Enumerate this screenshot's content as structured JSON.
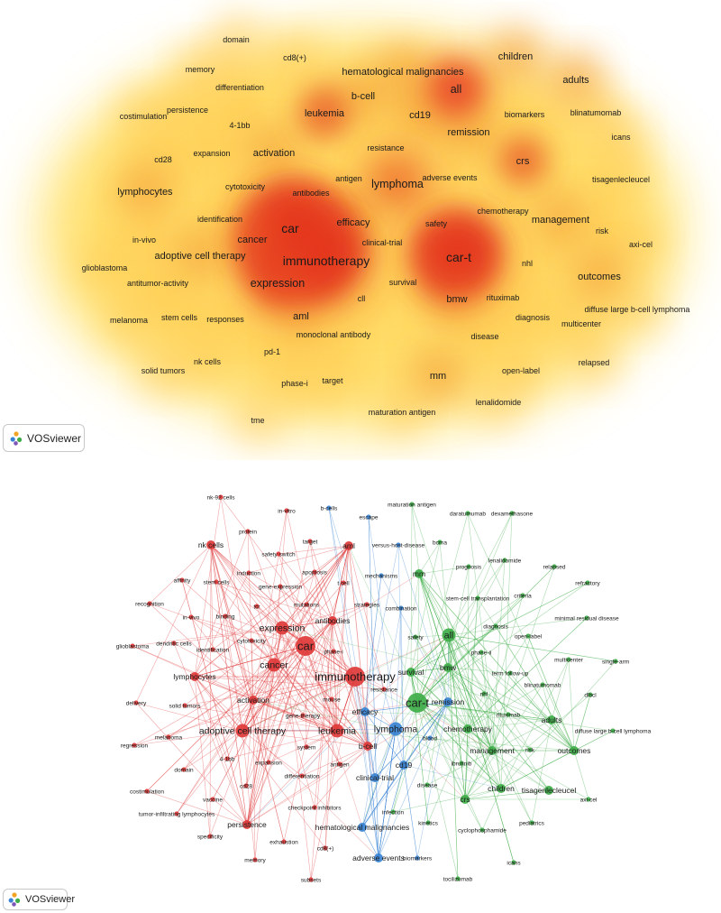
{
  "panel_a": {
    "letter": "a",
    "app_badge": "VOSviewer",
    "terms": [
      {
        "label": "domain",
        "w": 1
      },
      {
        "label": "cd8(+)",
        "w": 1
      },
      {
        "label": "memory",
        "w": 1
      },
      {
        "label": "hematological malignancies",
        "w": 2
      },
      {
        "label": "children",
        "w": 2
      },
      {
        "label": "adults",
        "w": 2
      },
      {
        "label": "differentiation",
        "w": 1
      },
      {
        "label": "all",
        "w": 3
      },
      {
        "label": "b-cell",
        "w": 2
      },
      {
        "label": "persistence",
        "w": 1
      },
      {
        "label": "costimulation",
        "w": 1
      },
      {
        "label": "4-1bb",
        "w": 1
      },
      {
        "label": "leukemia",
        "w": 2
      },
      {
        "label": "cd19",
        "w": 2
      },
      {
        "label": "biomarkers",
        "w": 1
      },
      {
        "label": "blinatumomab",
        "w": 1
      },
      {
        "label": "remission",
        "w": 2
      },
      {
        "label": "icans",
        "w": 1
      },
      {
        "label": "resistance",
        "w": 1
      },
      {
        "label": "expansion",
        "w": 1
      },
      {
        "label": "activation",
        "w": 2
      },
      {
        "label": "crs",
        "w": 2
      },
      {
        "label": "cd28",
        "w": 1
      },
      {
        "label": "antigen",
        "w": 1
      },
      {
        "label": "adverse events",
        "w": 1
      },
      {
        "label": "cytotoxicity",
        "w": 1
      },
      {
        "label": "lymphoma",
        "w": 3
      },
      {
        "label": "tisagenlecleucel",
        "w": 1
      },
      {
        "label": "lymphocytes",
        "w": 2
      },
      {
        "label": "antibodies",
        "w": 1
      },
      {
        "label": "chemotherapy",
        "w": 1
      },
      {
        "label": "identification",
        "w": 1
      },
      {
        "label": "efficacy",
        "w": 2
      },
      {
        "label": "management",
        "w": 2
      },
      {
        "label": "car",
        "w": 4
      },
      {
        "label": "safety",
        "w": 1
      },
      {
        "label": "risk",
        "w": 1
      },
      {
        "label": "in-vivo",
        "w": 1
      },
      {
        "label": "cancer",
        "w": 2
      },
      {
        "label": "clinical-trial",
        "w": 1
      },
      {
        "label": "axi-cel",
        "w": 1
      },
      {
        "label": "adoptive cell therapy",
        "w": 2
      },
      {
        "label": "car-t",
        "w": 4
      },
      {
        "label": "immunotherapy",
        "w": 4
      },
      {
        "label": "glioblastoma",
        "w": 1
      },
      {
        "label": "nhl",
        "w": 1
      },
      {
        "label": "antitumor-activity",
        "w": 1
      },
      {
        "label": "expression",
        "w": 3
      },
      {
        "label": "survival",
        "w": 1
      },
      {
        "label": "outcomes",
        "w": 2
      },
      {
        "label": "cll",
        "w": 1
      },
      {
        "label": "bmw",
        "w": 2
      },
      {
        "label": "rituximab",
        "w": 1
      },
      {
        "label": "diffuse large b-cell lymphoma",
        "w": 1
      },
      {
        "label": "aml",
        "w": 2
      },
      {
        "label": "stem cells",
        "w": 1
      },
      {
        "label": "diagnosis",
        "w": 1
      },
      {
        "label": "melanoma",
        "w": 1
      },
      {
        "label": "responses",
        "w": 1
      },
      {
        "label": "multicenter",
        "w": 1
      },
      {
        "label": "monoclonal antibody",
        "w": 1
      },
      {
        "label": "disease",
        "w": 1
      },
      {
        "label": "pd-1",
        "w": 1
      },
      {
        "label": "nk cells",
        "w": 1
      },
      {
        "label": "relapsed",
        "w": 1
      },
      {
        "label": "solid tumors",
        "w": 1
      },
      {
        "label": "mm",
        "w": 2
      },
      {
        "label": "open-label",
        "w": 1
      },
      {
        "label": "target",
        "w": 1
      },
      {
        "label": "phase-i",
        "w": 1
      },
      {
        "label": "lenalidomide",
        "w": 1
      },
      {
        "label": "tme",
        "w": 1
      },
      {
        "label": "maturation antigen",
        "w": 1
      }
    ]
  },
  "panel_b": {
    "letter": "b",
    "app_badge": "VOSviewer",
    "colors": {
      "red": "#e0393a",
      "green": "#3fae49",
      "blue": "#3a83d4"
    },
    "nodes": [
      {
        "label": "nk-92 cells",
        "c": "red",
        "w": 1
      },
      {
        "label": "in-vitro",
        "c": "red",
        "w": 1
      },
      {
        "label": "b-cells",
        "c": "blue",
        "w": 1
      },
      {
        "label": "maturation antigen",
        "c": "green",
        "w": 1
      },
      {
        "label": "daratumumab",
        "c": "green",
        "w": 1
      },
      {
        "label": "dexamethasone",
        "c": "green",
        "w": 1
      },
      {
        "label": "protein",
        "c": "red",
        "w": 1
      },
      {
        "label": "escape",
        "c": "blue",
        "w": 1
      },
      {
        "label": "target",
        "c": "red",
        "w": 1
      },
      {
        "label": "aml",
        "c": "red",
        "w": 2
      },
      {
        "label": "versus-host-disease",
        "c": "blue",
        "w": 1
      },
      {
        "label": "bcma",
        "c": "green",
        "w": 1
      },
      {
        "label": "nk cells",
        "c": "red",
        "w": 2
      },
      {
        "label": "safety switch",
        "c": "red",
        "w": 1
      },
      {
        "label": "lenalidomide",
        "c": "green",
        "w": 1
      },
      {
        "label": "relapsed",
        "c": "green",
        "w": 1
      },
      {
        "label": "apoptosis",
        "c": "red",
        "w": 1
      },
      {
        "label": "mechanisms",
        "c": "blue",
        "w": 1
      },
      {
        "label": "mm",
        "c": "green",
        "w": 2
      },
      {
        "label": "prognosis",
        "c": "green",
        "w": 1
      },
      {
        "label": "affinity",
        "c": "red",
        "w": 1
      },
      {
        "label": "induction",
        "c": "red",
        "w": 1
      },
      {
        "label": "refractory",
        "c": "green",
        "w": 1
      },
      {
        "label": "stem cells",
        "c": "red",
        "w": 1
      },
      {
        "label": "t cell",
        "c": "red",
        "w": 1
      },
      {
        "label": "criteria",
        "c": "green",
        "w": 1
      },
      {
        "label": "gene-expression",
        "c": "red",
        "w": 1
      },
      {
        "label": "stem-cell transplantation",
        "c": "green",
        "w": 1
      },
      {
        "label": "recognition",
        "c": "red",
        "w": 1
      },
      {
        "label": "tcr",
        "c": "red",
        "w": 1
      },
      {
        "label": "mutations",
        "c": "red",
        "w": 1
      },
      {
        "label": "strategies",
        "c": "red",
        "w": 1
      },
      {
        "label": "combination",
        "c": "blue",
        "w": 1
      },
      {
        "label": "diagnosis",
        "c": "green",
        "w": 1
      },
      {
        "label": "minimal residual disease",
        "c": "green",
        "w": 1
      },
      {
        "label": "in-vivo",
        "c": "red",
        "w": 1
      },
      {
        "label": "binding",
        "c": "red",
        "w": 1
      },
      {
        "label": "expression",
        "c": "red",
        "w": 3
      },
      {
        "label": "antibodies",
        "c": "red",
        "w": 2
      },
      {
        "label": "all",
        "c": "green",
        "w": 3
      },
      {
        "label": "open-label",
        "c": "green",
        "w": 1
      },
      {
        "label": "safety",
        "c": "green",
        "w": 1
      },
      {
        "label": "glioblastoma",
        "c": "red",
        "w": 1
      },
      {
        "label": "dendritic cells",
        "c": "red",
        "w": 1
      },
      {
        "label": "cytotoxicity",
        "c": "red",
        "w": 1
      },
      {
        "label": "identification",
        "c": "red",
        "w": 1
      },
      {
        "label": "car",
        "c": "red",
        "w": 4
      },
      {
        "label": "phase-i",
        "c": "red",
        "w": 1
      },
      {
        "label": "phase-ii",
        "c": "green",
        "w": 1
      },
      {
        "label": "multicenter",
        "c": "green",
        "w": 1
      },
      {
        "label": "single-arm",
        "c": "green",
        "w": 1
      },
      {
        "label": "cancer",
        "c": "red",
        "w": 3
      },
      {
        "label": "immunotherapy",
        "c": "red",
        "w": 4
      },
      {
        "label": "term follow-up",
        "c": "green",
        "w": 1
      },
      {
        "label": "lymphocytes",
        "c": "red",
        "w": 2
      },
      {
        "label": "survival",
        "c": "green",
        "w": 2
      },
      {
        "label": "bmw",
        "c": "green",
        "w": 2
      },
      {
        "label": "blinatumomab",
        "c": "green",
        "w": 1
      },
      {
        "label": "delivery",
        "c": "red",
        "w": 1
      },
      {
        "label": "solid tumors",
        "c": "red",
        "w": 1
      },
      {
        "label": "resistance",
        "c": "red",
        "w": 1
      },
      {
        "label": "car-t",
        "c": "green",
        "w": 4
      },
      {
        "label": "remission",
        "c": "blue",
        "w": 2
      },
      {
        "label": "nhl",
        "c": "green",
        "w": 1
      },
      {
        "label": "dlbcl",
        "c": "green",
        "w": 1
      },
      {
        "label": "activation",
        "c": "red",
        "w": 2
      },
      {
        "label": "mouse",
        "c": "red",
        "w": 1
      },
      {
        "label": "efficacy",
        "c": "blue",
        "w": 2
      },
      {
        "label": "rituximab",
        "c": "green",
        "w": 1
      },
      {
        "label": "adults",
        "c": "green",
        "w": 2
      },
      {
        "label": "adoptive cell therapy",
        "c": "red",
        "w": 3
      },
      {
        "label": "gene-therapy",
        "c": "red",
        "w": 1
      },
      {
        "label": "lymphoma",
        "c": "blue",
        "w": 3
      },
      {
        "label": "chemotherapy",
        "c": "green",
        "w": 2
      },
      {
        "label": "diffuse large b-cell lymphoma",
        "c": "green",
        "w": 1
      },
      {
        "label": "regression",
        "c": "red",
        "w": 1
      },
      {
        "label": "melanoma",
        "c": "red",
        "w": 1
      },
      {
        "label": "leukemia",
        "c": "red",
        "w": 3
      },
      {
        "label": "blood",
        "c": "blue",
        "w": 1
      },
      {
        "label": "b-cell",
        "c": "red",
        "w": 2
      },
      {
        "label": "management",
        "c": "green",
        "w": 2
      },
      {
        "label": "risk",
        "c": "green",
        "w": 1
      },
      {
        "label": "outcomes",
        "c": "green",
        "w": 2
      },
      {
        "label": "system",
        "c": "red",
        "w": 1
      },
      {
        "label": "domain",
        "c": "red",
        "w": 1
      },
      {
        "label": "4-1bb",
        "c": "red",
        "w": 1
      },
      {
        "label": "expansion",
        "c": "red",
        "w": 1
      },
      {
        "label": "ibrutinib",
        "c": "green",
        "w": 1
      },
      {
        "label": "cd19",
        "c": "blue",
        "w": 2
      },
      {
        "label": "differentiation",
        "c": "red",
        "w": 1
      },
      {
        "label": "antigen",
        "c": "red",
        "w": 1
      },
      {
        "label": "clinical-trial",
        "c": "blue",
        "w": 2
      },
      {
        "label": "cd28",
        "c": "red",
        "w": 1
      },
      {
        "label": "disease",
        "c": "green",
        "w": 1
      },
      {
        "label": "costimulation",
        "c": "red",
        "w": 1
      },
      {
        "label": "crs",
        "c": "green",
        "w": 2
      },
      {
        "label": "children",
        "c": "green",
        "w": 2
      },
      {
        "label": "tisagenlecleucel",
        "c": "green",
        "w": 2
      },
      {
        "label": "axi-cel",
        "c": "green",
        "w": 1
      },
      {
        "label": "vaccine",
        "c": "red",
        "w": 1
      },
      {
        "label": "checkpoint inhibitors",
        "c": "red",
        "w": 1
      },
      {
        "label": "infection",
        "c": "green",
        "w": 1
      },
      {
        "label": "tumor-infiltrating lymphocytes",
        "c": "red",
        "w": 1
      },
      {
        "label": "persistence",
        "c": "red",
        "w": 2
      },
      {
        "label": "hematological malignancies",
        "c": "blue",
        "w": 2
      },
      {
        "label": "kinetics",
        "c": "green",
        "w": 1
      },
      {
        "label": "pediatrics",
        "c": "green",
        "w": 1
      },
      {
        "label": "cyclophosphamide",
        "c": "green",
        "w": 1
      },
      {
        "label": "specificity",
        "c": "red",
        "w": 1
      },
      {
        "label": "exhaustion",
        "c": "red",
        "w": 1
      },
      {
        "label": "cd8(+)",
        "c": "red",
        "w": 1
      },
      {
        "label": "adverse events",
        "c": "blue",
        "w": 2
      },
      {
        "label": "biomarkers",
        "c": "blue",
        "w": 1
      },
      {
        "label": "icans",
        "c": "green",
        "w": 1
      },
      {
        "label": "memory",
        "c": "red",
        "w": 1
      },
      {
        "label": "subsets",
        "c": "red",
        "w": 1
      },
      {
        "label": "tocilizumab",
        "c": "green",
        "w": 1
      }
    ]
  }
}
